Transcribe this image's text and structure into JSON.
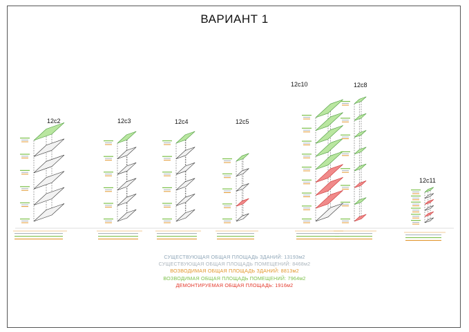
{
  "title": "ВАРИАНТ 1",
  "colors": {
    "existing_total": "#8fa6b8",
    "existing_rooms": "#aab4bc",
    "new_total": "#e2962c",
    "new_rooms": "#7cc04a",
    "demolished": "#e3392c",
    "new_fill": "#b9e6a0",
    "demolished_fill": "#f08a8a"
  },
  "buildings": [
    {
      "id": "12с2"
    },
    {
      "id": "12с3"
    },
    {
      "id": "12с4"
    },
    {
      "id": "12с5"
    },
    {
      "id": "12с10"
    },
    {
      "id": "12с8"
    },
    {
      "id": "12с11"
    }
  ],
  "totals": {
    "existing_total": "СУЩЕСТВУЮЩАЯ ОБЩАЯ ПЛОЩАДЬ ЗДАНИЙ: 13193м2",
    "existing_rooms": "СУЩЕСТВУЮЩАЯ ОБЩАЯ ПЛОЩАДЬ ПОМЕЩЕНИЙ: 8468м2",
    "new_total": "ВОЗВОДИМАЯ ОБЩАЯ ПЛОЩАДЬ ЗДАНИЙ: 8813м2",
    "new_rooms": "ВОЗВОДИМАЯ ОБЩАЯ ПЛОЩАДЬ ПОМЕЩЕНИЙ: 7964м2",
    "demolished": "ДЕМОНТИРУЕМАЯ ОБЩАЯ ПЛОЩАДЬ: 1916м2"
  }
}
